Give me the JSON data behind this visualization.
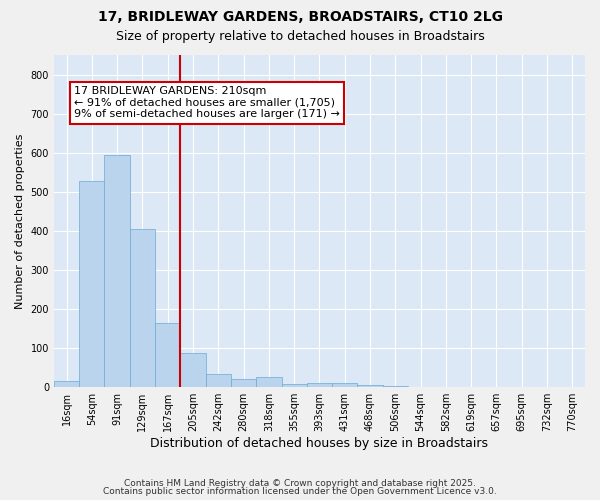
{
  "title1": "17, BRIDLEWAY GARDENS, BROADSTAIRS, CT10 2LG",
  "title2": "Size of property relative to detached houses in Broadstairs",
  "xlabel": "Distribution of detached houses by size in Broadstairs",
  "ylabel": "Number of detached properties",
  "categories": [
    "16sqm",
    "54sqm",
    "91sqm",
    "129sqm",
    "167sqm",
    "205sqm",
    "242sqm",
    "280sqm",
    "318sqm",
    "355sqm",
    "393sqm",
    "431sqm",
    "468sqm",
    "506sqm",
    "544sqm",
    "582sqm",
    "619sqm",
    "657sqm",
    "695sqm",
    "732sqm",
    "770sqm"
  ],
  "values": [
    15,
    527,
    593,
    405,
    165,
    88,
    35,
    22,
    27,
    8,
    12,
    12,
    5,
    2,
    1,
    1,
    0,
    0,
    0,
    0,
    0
  ],
  "bar_color": "#bad4ed",
  "bar_edge_color": "#6aaad4",
  "vline_color": "#cc0000",
  "ylim": [
    0,
    850
  ],
  "yticks": [
    0,
    100,
    200,
    300,
    400,
    500,
    600,
    700,
    800
  ],
  "annotation_line1": "17 BRIDLEWAY GARDENS: 210sqm",
  "annotation_line2": "← 91% of detached houses are smaller (1,705)",
  "annotation_line3": "9% of semi-detached houses are larger (171) →",
  "annotation_box_color": "#ffffff",
  "annotation_box_edge": "#cc0000",
  "footer1": "Contains HM Land Registry data © Crown copyright and database right 2025.",
  "footer2": "Contains public sector information licensed under the Open Government Licence v3.0.",
  "bg_color": "#dce8f5",
  "grid_color": "#ffffff",
  "fig_bg_color": "#f0f0f0",
  "title1_fontsize": 10,
  "title2_fontsize": 9,
  "xlabel_fontsize": 9,
  "ylabel_fontsize": 8,
  "tick_fontsize": 7,
  "annotation_fontsize": 8,
  "footer_fontsize": 6.5,
  "vline_bin_index": 5
}
